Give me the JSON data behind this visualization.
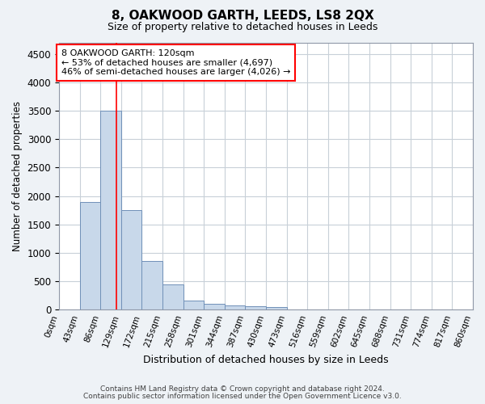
{
  "title": "8, OAKWOOD GARTH, LEEDS, LS8 2QX",
  "subtitle": "Size of property relative to detached houses in Leeds",
  "xlabel": "Distribution of detached houses by size in Leeds",
  "ylabel": "Number of detached properties",
  "bar_color": "#c8d8ea",
  "bar_edge_color": "#7090b8",
  "bins": [
    "0sqm",
    "43sqm",
    "86sqm",
    "129sqm",
    "172sqm",
    "215sqm",
    "258sqm",
    "301sqm",
    "344sqm",
    "387sqm",
    "430sqm",
    "473sqm",
    "516sqm",
    "559sqm",
    "602sqm",
    "645sqm",
    "688sqm",
    "731sqm",
    "774sqm",
    "817sqm",
    "860sqm"
  ],
  "values": [
    10,
    1900,
    3500,
    1750,
    850,
    450,
    160,
    100,
    75,
    60,
    50,
    0,
    0,
    0,
    0,
    0,
    0,
    0,
    0,
    0
  ],
  "bin_width": 43,
  "bin_edges": [
    0,
    43,
    86,
    129,
    172,
    215,
    258,
    301,
    344,
    387,
    430,
    473,
    516,
    559,
    602,
    645,
    688,
    731,
    774,
    817,
    860
  ],
  "red_line_x": 120,
  "ylim": [
    0,
    4700
  ],
  "yticks": [
    0,
    500,
    1000,
    1500,
    2000,
    2500,
    3000,
    3500,
    4000,
    4500
  ],
  "annotation_line1": "8 OAKWOOD GARTH: 120sqm",
  "annotation_line2": "← 53% of detached houses are smaller (4,697)",
  "annotation_line3": "46% of semi-detached houses are larger (4,026) →",
  "annotation_box_color": "white",
  "annotation_border_color": "red",
  "footer_line1": "Contains HM Land Registry data © Crown copyright and database right 2024.",
  "footer_line2": "Contains public sector information licensed under the Open Government Licence v3.0.",
  "background_color": "#eef2f6",
  "plot_background_color": "white",
  "grid_color": "#c8d0d8",
  "title_fontsize": 11,
  "subtitle_fontsize": 9
}
